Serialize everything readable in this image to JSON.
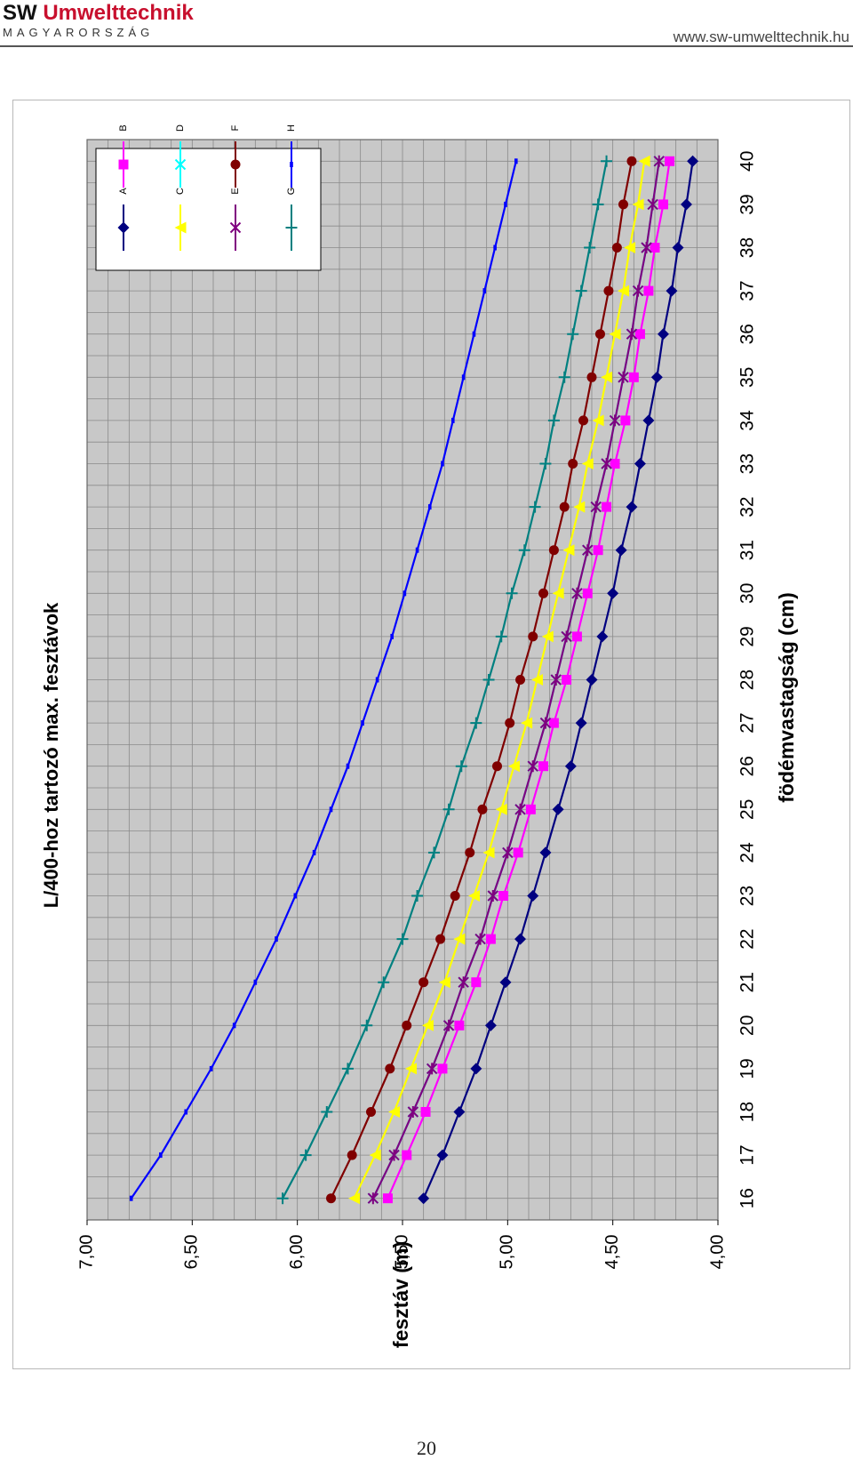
{
  "header": {
    "brand_prefix": "SW",
    "brand_name": "Umwelttechnik",
    "brand_subtitle": "MAGYARORSZÁG",
    "website": "www.sw-umwelttechnik.hu"
  },
  "page_number": "20",
  "colors": {
    "plot_background": "#c8c8c8",
    "grid": "#8a8a8a",
    "brand_red": "#c8102e"
  },
  "chart_data": {
    "type": "line",
    "orientation": "rotated-90-counterclockwise",
    "title": "L/400-hoz tartozó max. fesztávok",
    "xlabel": "födémvastagság (cm)",
    "ylabel": "fesztáv (m)",
    "x": [
      16,
      17,
      18,
      19,
      20,
      21,
      22,
      23,
      24,
      25,
      26,
      27,
      28,
      29,
      30,
      31,
      32,
      33,
      34,
      35,
      36,
      37,
      38,
      39,
      40
    ],
    "x_tick_labels": [
      "16",
      "17",
      "18",
      "19",
      "20",
      "21",
      "22",
      "23",
      "24",
      "25",
      "26",
      "27",
      "28",
      "29",
      "30",
      "31",
      "32",
      "33",
      "34",
      "35",
      "36",
      "37",
      "38",
      "39",
      "40"
    ],
    "xlim": [
      15.5,
      40.5
    ],
    "ylim": [
      4.0,
      7.0
    ],
    "y_ticks": [
      4.0,
      4.5,
      5.0,
      5.5,
      6.0,
      6.5,
      7.0
    ],
    "y_tick_labels": [
      "4,00",
      "4,50",
      "5,00",
      "5,50",
      "6,00",
      "6,50",
      "7,00"
    ],
    "grid": true,
    "legend_position": "top-right",
    "series": [
      {
        "name": "A",
        "color": "#000080",
        "marker": "diamond",
        "values": [
          5.4,
          5.31,
          5.23,
          5.15,
          5.08,
          5.01,
          4.94,
          4.88,
          4.82,
          4.76,
          4.7,
          4.65,
          4.6,
          4.55,
          4.5,
          4.46,
          4.41,
          4.37,
          4.33,
          4.29,
          4.26,
          4.22,
          4.19,
          4.15,
          4.12
        ]
      },
      {
        "name": "B",
        "color": "#ff00ff",
        "marker": "square",
        "values": [
          5.57,
          5.48,
          5.39,
          5.31,
          5.23,
          5.15,
          5.08,
          5.02,
          4.95,
          4.89,
          4.83,
          4.78,
          4.72,
          4.67,
          4.62,
          4.57,
          4.53,
          4.49,
          4.44,
          4.4,
          4.37,
          4.33,
          4.3,
          4.26,
          4.23
        ]
      },
      {
        "name": "C",
        "color": "#ffff00",
        "marker": "triangle",
        "values": [
          5.73,
          5.63,
          5.54,
          5.46,
          5.38,
          5.3,
          5.23,
          5.16,
          5.09,
          5.03,
          4.97,
          4.91,
          4.86,
          4.81,
          4.76,
          4.71,
          4.66,
          4.62,
          4.57,
          4.53,
          4.49,
          4.45,
          4.42,
          4.38,
          4.35
        ]
      },
      {
        "name": "D",
        "color": "#00ffff",
        "marker": "x",
        "values": [
          5.64,
          5.54,
          5.45,
          5.36,
          5.28,
          5.21,
          5.13,
          5.07,
          5.0,
          4.94,
          4.88,
          4.82,
          4.77,
          4.72,
          4.67,
          4.62,
          4.58,
          4.53,
          4.49,
          4.45,
          4.41,
          4.38,
          4.34,
          4.31,
          4.28
        ]
      },
      {
        "name": "E",
        "color": "#800080",
        "marker": "asterisk",
        "values": [
          5.64,
          5.54,
          5.45,
          5.36,
          5.28,
          5.21,
          5.13,
          5.07,
          5.0,
          4.94,
          4.88,
          4.82,
          4.77,
          4.72,
          4.67,
          4.62,
          4.58,
          4.53,
          4.49,
          4.45,
          4.41,
          4.38,
          4.34,
          4.31,
          4.28
        ]
      },
      {
        "name": "F",
        "color": "#800000",
        "marker": "circle",
        "values": [
          5.84,
          5.74,
          5.65,
          5.56,
          5.48,
          5.4,
          5.32,
          5.25,
          5.18,
          5.12,
          5.05,
          4.99,
          4.94,
          4.88,
          4.83,
          4.78,
          4.73,
          4.69,
          4.64,
          4.6,
          4.56,
          4.52,
          4.48,
          4.45,
          4.41
        ]
      },
      {
        "name": "G",
        "color": "#008080",
        "marker": "plus",
        "values": [
          6.07,
          5.96,
          5.86,
          5.76,
          5.67,
          5.59,
          5.5,
          5.43,
          5.35,
          5.28,
          5.22,
          5.15,
          5.09,
          5.03,
          4.98,
          4.92,
          4.87,
          4.82,
          4.78,
          4.73,
          4.69,
          4.65,
          4.61,
          4.57,
          4.53
        ]
      },
      {
        "name": "H",
        "color": "#0000ff",
        "marker": "dash",
        "values": [
          6.79,
          6.65,
          6.53,
          6.41,
          6.3,
          6.2,
          6.1,
          6.01,
          5.92,
          5.84,
          5.76,
          5.69,
          5.62,
          5.55,
          5.49,
          5.43,
          5.37,
          5.31,
          5.26,
          5.21,
          5.16,
          5.11,
          5.06,
          5.01,
          4.96
        ]
      }
    ]
  }
}
